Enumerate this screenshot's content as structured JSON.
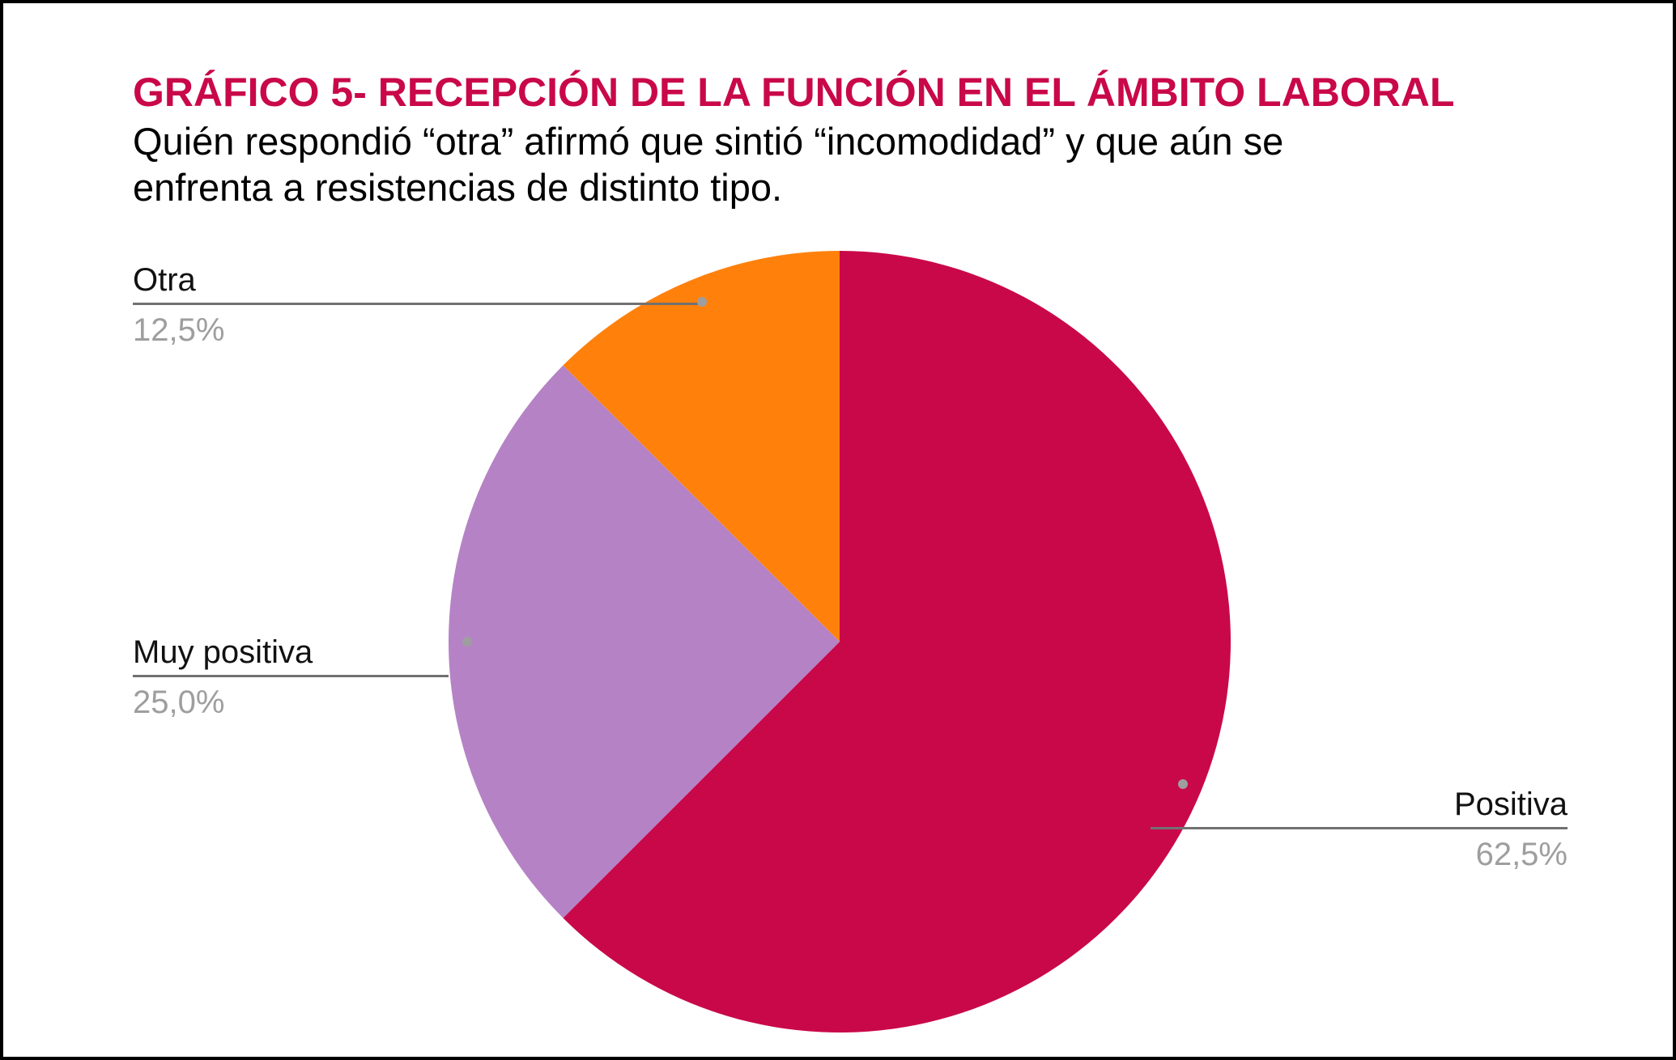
{
  "frame": {
    "background": "#ffffff",
    "border_color": "#000000"
  },
  "header": {
    "title": "GRÁFICO 5- RECEPCIÓN DE LA FUNCIÓN EN EL ÁMBITO LABORAL",
    "title_color": "#C9084A",
    "subtitle_line1": "Quién respondió “otra” afirmó que sintió “incomodidad” y que aún se",
    "subtitle_line2": "enfrenta a resistencias de distinto tipo.",
    "subtitle_color": "#000000"
  },
  "chart_data": {
    "type": "pie",
    "title": "GRÁFICO 5- RECEPCIÓN DE LA FUNCIÓN EN EL ÁMBITO LABORAL",
    "start_angle_deg": 0,
    "direction": "clockwise",
    "legend_position": "none (callout labels with leader lines)",
    "categories": [
      "Positiva",
      "Muy positiva",
      "Otra"
    ],
    "values": [
      62.5,
      25.0,
      12.5
    ],
    "slices": [
      {
        "name": "Positiva",
        "value": 62.5,
        "value_label": "62,5%",
        "color": "#C9084A"
      },
      {
        "name": "Muy positiva",
        "value": 25.0,
        "value_label": "25,0%",
        "color": "#B583C5"
      },
      {
        "name": "Otra",
        "value": 12.5,
        "value_label": "12,5%",
        "color": "#FF810C"
      }
    ],
    "label_text_color": "#111111",
    "percent_text_color": "#9E9E9E",
    "leader_line_color": "#717171",
    "anchor_dot_color": "#9E9E9E"
  }
}
